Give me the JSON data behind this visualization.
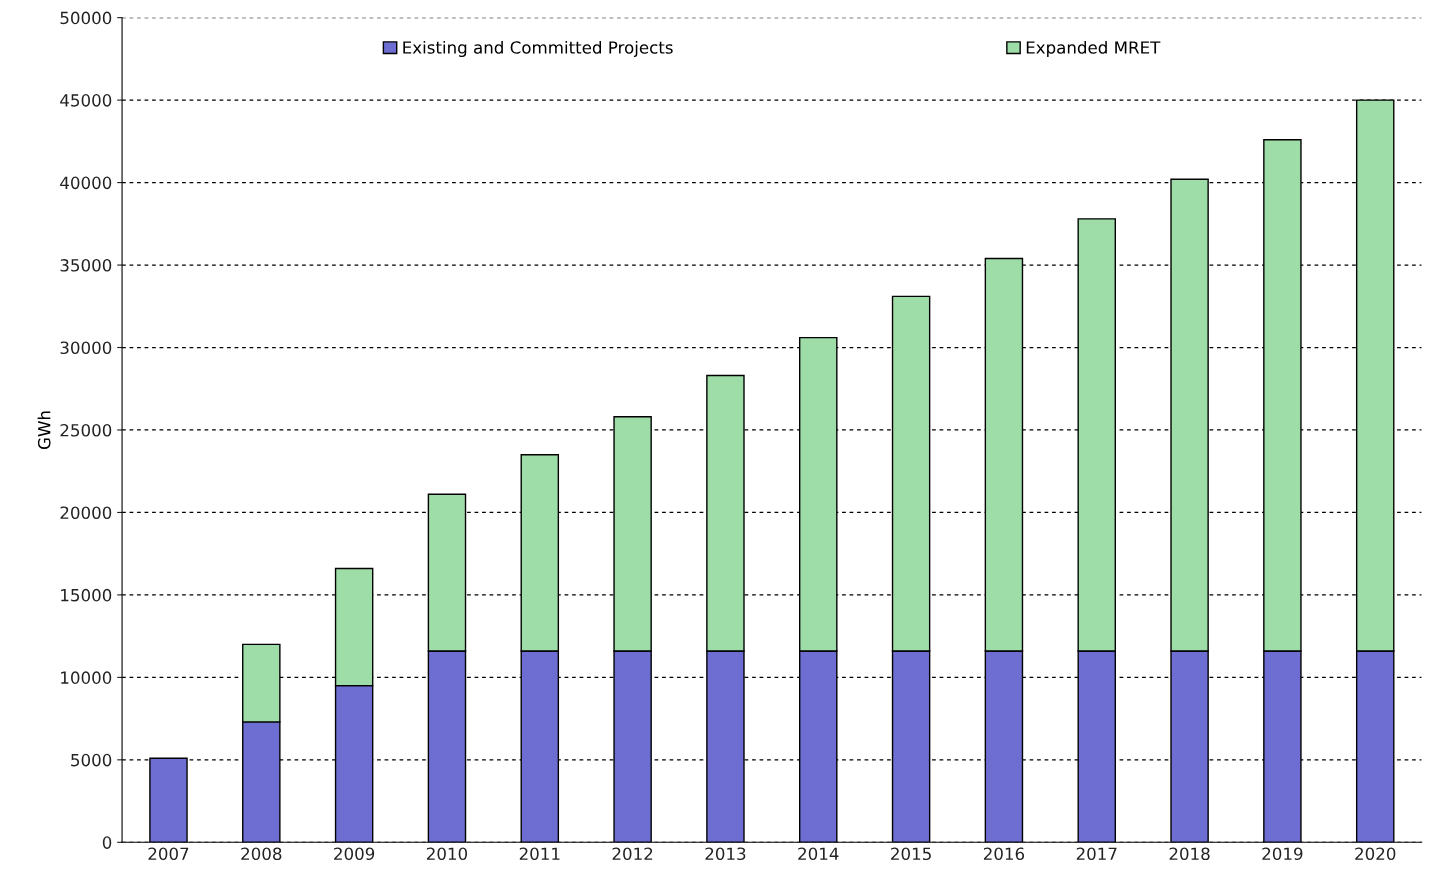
{
  "chart_data": {
    "type": "bar",
    "stacked": true,
    "ylabel": "GWh",
    "categories": [
      "2007",
      "2008",
      "2009",
      "2010",
      "2011",
      "2012",
      "2013",
      "2014",
      "2015",
      "2016",
      "2017",
      "2018",
      "2019",
      "2020"
    ],
    "series": [
      {
        "name": "Existing and Committed Projects",
        "color": "#6e6ed2",
        "values": [
          5100,
          7300,
          9500,
          11600,
          11600,
          11600,
          11600,
          11600,
          11600,
          11600,
          11600,
          11600,
          11600,
          11600
        ]
      },
      {
        "name": "Expanded MRET",
        "color": "#9edca8",
        "values": [
          null,
          4700,
          7100,
          9500,
          11900,
          14200,
          16700,
          19000,
          21500,
          23800,
          26200,
          28600,
          31000,
          33400
        ]
      }
    ],
    "ylim": [
      0,
      50000
    ],
    "yticks": [
      0,
      5000,
      10000,
      15000,
      20000,
      25000,
      30000,
      35000,
      40000,
      45000,
      50000
    ],
    "grid": "y",
    "legend": "top"
  }
}
